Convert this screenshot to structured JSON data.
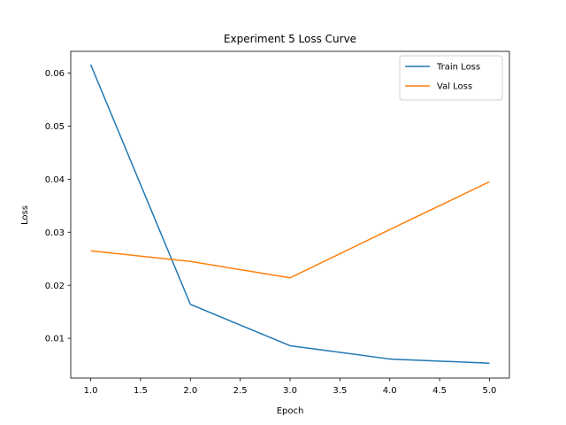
{
  "chart_data": {
    "type": "line",
    "title": "Experiment 5 Loss Curve",
    "xlabel": "Epoch",
    "ylabel": "Loss",
    "x": [
      1.0,
      2.0,
      3.0,
      4.0,
      5.0
    ],
    "series": [
      {
        "name": "Train Loss",
        "values": [
          0.0616,
          0.0164,
          0.0086,
          0.0061,
          0.0053
        ],
        "color": "#1f77b4"
      },
      {
        "name": "Val Loss",
        "values": [
          0.0265,
          0.0245,
          0.0214,
          0.0305,
          0.0395
        ],
        "color": "#ff7f0e"
      }
    ],
    "xlim": [
      0.8,
      5.2
    ],
    "ylim": [
      0.0025,
      0.0641
    ],
    "xticks": [
      1.0,
      1.5,
      2.0,
      2.5,
      3.0,
      3.5,
      4.0,
      4.5,
      5.0
    ],
    "xtick_labels": [
      "1.0",
      "1.5",
      "2.0",
      "2.5",
      "3.0",
      "3.5",
      "4.0",
      "4.5",
      "5.0"
    ],
    "yticks": [
      0.01,
      0.02,
      0.03,
      0.04,
      0.05,
      0.06
    ],
    "ytick_labels": [
      "0.01",
      "0.02",
      "0.03",
      "0.04",
      "0.05",
      "0.06"
    ],
    "grid": false,
    "legend_position": "top-right"
  }
}
